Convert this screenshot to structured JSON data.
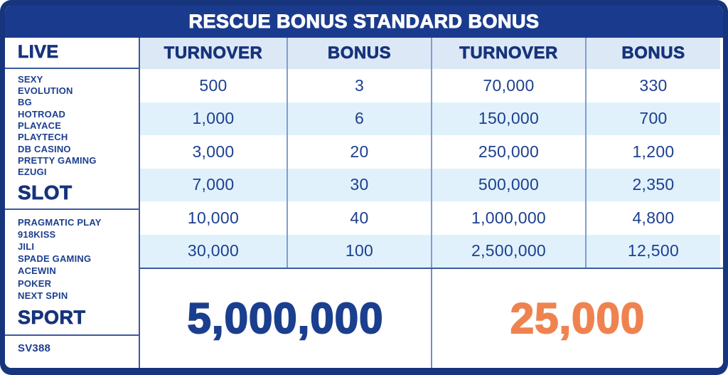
{
  "title": "RESCUE BONUS STANDARD BONUS",
  "colors": {
    "navy_bar": "#1a3b8d",
    "frame_border": "#16357d",
    "header_cell_bg": "#dce8f6",
    "alt_row_bg": "#e0f1fc",
    "text_navy": "#1c3f8f",
    "divider_steel": "#7f9ecf",
    "divider_dark": "#3d5a9e",
    "total_left_color": "#1b3f8f",
    "total_right_color": "#ef8350"
  },
  "sidebar": {
    "sections": [
      {
        "label": "LIVE",
        "providers": [
          "SEXY",
          "EVOLUTION",
          "BG",
          "HOTROAD",
          "PLAYACE",
          "PLAYTECH",
          "DB CASINO",
          "PRETTY GAMING",
          "EZUGI"
        ]
      },
      {
        "label": "SLOT",
        "providers": [
          "PRAGMATIC PLAY",
          "918KISS",
          "JILI",
          "SPADE GAMING",
          "ACEWIN",
          "POKER",
          "NEXT SPIN"
        ]
      },
      {
        "label": "SPORT",
        "providers": [
          "SV388"
        ]
      }
    ]
  },
  "table": {
    "headers": [
      "TURNOVER",
      "BONUS",
      "TURNOVER",
      "BONUS"
    ],
    "rows": [
      [
        "500",
        "3",
        "70,000",
        "330"
      ],
      [
        "1,000",
        "6",
        "150,000",
        "700"
      ],
      [
        "3,000",
        "20",
        "250,000",
        "1,200"
      ],
      [
        "7,000",
        "30",
        "500,000",
        "2,350"
      ],
      [
        "10,000",
        "40",
        "1,000,000",
        "4,800"
      ],
      [
        "30,000",
        "100",
        "2,500,000",
        "12,500"
      ]
    ],
    "totals": {
      "left": "5,000,000",
      "right": "25,000"
    }
  }
}
